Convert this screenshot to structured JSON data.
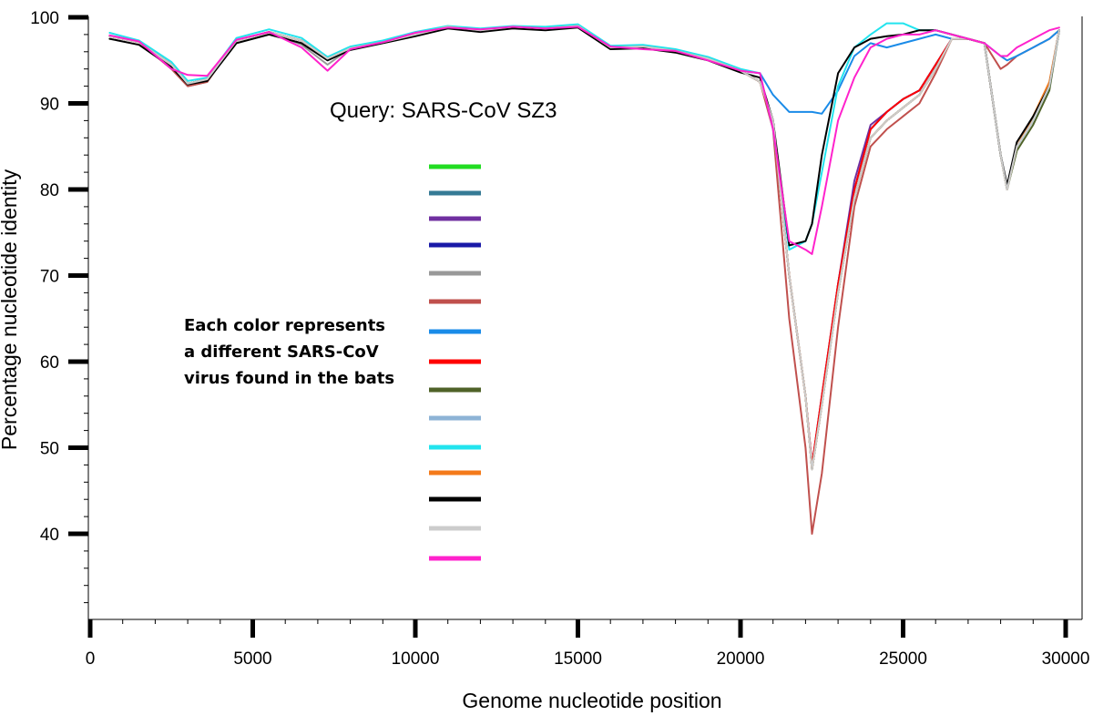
{
  "chart_data": {
    "type": "line",
    "title": "Query: SARS-CoV SZ3",
    "xlabel": "Genome nucleotide position",
    "ylabel": "Percentage nucleotide identity",
    "xlim": [
      0,
      30000
    ],
    "ylim": [
      30,
      100
    ],
    "x_ticks": [
      "0",
      "5000",
      "10000",
      "15000",
      "20000",
      "25000",
      "30000"
    ],
    "y_ticks": [
      "40",
      "50",
      "60",
      "70",
      "80",
      "90",
      "100"
    ],
    "note": [
      "Each color represents",
      "a different SARS-CoV",
      "virus found in the bats"
    ],
    "legend_placement": "center-left, unlabeled color swatches",
    "grid": false,
    "x": [
      600,
      1500,
      2500,
      3000,
      3600,
      4500,
      5500,
      6500,
      7300,
      8000,
      9000,
      10000,
      11000,
      12000,
      13000,
      14000,
      15000,
      16000,
      17000,
      18000,
      19000,
      20000,
      20600,
      21000,
      21500,
      22000,
      22200,
      22500,
      23000,
      23500,
      24000,
      24500,
      25000,
      25500,
      26000,
      26500,
      27000,
      27500,
      28000,
      28200,
      28500,
      29000,
      29500,
      29800
    ],
    "series": [
      {
        "color": "#22dd22",
        "values": [
          97.8,
          97.1,
          94.5,
          92.3,
          92.8,
          97.3,
          98.3,
          97.3,
          95.2,
          96.4,
          97.1,
          98.0,
          98.9,
          98.5,
          98.9,
          98.7,
          99.0,
          96.5,
          96.6,
          96.1,
          95.2,
          93.8,
          92.5,
          88.0,
          70.0,
          56.0,
          47.5,
          55.0,
          68.0,
          79.0,
          86.0,
          88.0,
          89.5,
          91.0,
          94.0,
          97.5,
          97.5,
          97.0,
          84.0,
          80.0,
          85.0,
          88.0,
          92.0,
          98.5
        ]
      },
      {
        "color": "#357a95",
        "values": [
          97.8,
          97.1,
          94.5,
          92.3,
          92.8,
          97.3,
          98.3,
          97.3,
          95.2,
          96.4,
          97.1,
          98.0,
          98.9,
          98.5,
          98.9,
          98.7,
          99.0,
          96.5,
          96.6,
          96.1,
          95.2,
          93.8,
          92.5,
          88.0,
          70.0,
          56.0,
          47.5,
          55.0,
          68.0,
          79.0,
          86.0,
          88.0,
          89.5,
          91.0,
          94.0,
          97.5,
          97.5,
          97.0,
          84.0,
          80.0,
          85.0,
          88.0,
          92.0,
          98.5
        ]
      },
      {
        "color": "#7030a0",
        "values": [
          97.8,
          97.1,
          94.5,
          92.3,
          92.8,
          97.3,
          98.3,
          97.3,
          95.2,
          96.4,
          97.1,
          98.0,
          98.9,
          98.5,
          98.9,
          98.7,
          99.0,
          96.5,
          96.6,
          96.1,
          95.2,
          93.8,
          92.5,
          88.0,
          70.0,
          56.0,
          47.5,
          55.0,
          69.0,
          81.0,
          87.5,
          89.0,
          90.5,
          91.5,
          94.5,
          97.5,
          97.5,
          97.0,
          84.0,
          80.0,
          85.0,
          88.0,
          92.0,
          98.5
        ]
      },
      {
        "color": "#1a1aa8",
        "values": [
          97.8,
          97.1,
          94.5,
          92.3,
          92.8,
          97.3,
          98.3,
          97.3,
          95.2,
          96.4,
          97.1,
          98.0,
          98.9,
          98.5,
          98.9,
          98.7,
          99.0,
          96.5,
          96.6,
          96.1,
          95.2,
          93.8,
          92.5,
          88.0,
          70.0,
          56.0,
          48.0,
          56.0,
          69.0,
          80.0,
          87.0,
          89.0,
          90.5,
          91.5,
          94.5,
          97.5,
          97.5,
          97.0,
          84.0,
          80.0,
          85.0,
          88.0,
          92.0,
          98.5
        ]
      },
      {
        "color": "#999999",
        "values": [
          97.8,
          97.1,
          94.0,
          92.0,
          92.5,
          97.3,
          98.3,
          96.8,
          94.5,
          96.4,
          97.1,
          98.0,
          98.9,
          98.5,
          98.9,
          98.7,
          99.0,
          96.5,
          96.6,
          96.1,
          95.2,
          93.8,
          92.5,
          88.0,
          70.0,
          56.0,
          47.5,
          55.0,
          68.0,
          79.0,
          86.0,
          88.0,
          89.5,
          91.0,
          94.0,
          97.5,
          97.5,
          97.0,
          84.0,
          80.0,
          85.0,
          88.0,
          92.0,
          98.5
        ]
      },
      {
        "color": "#c0504d",
        "values": [
          97.8,
          97.1,
          94.0,
          92.0,
          92.5,
          97.3,
          98.3,
          97.3,
          95.2,
          96.4,
          97.1,
          98.0,
          98.9,
          98.5,
          98.9,
          98.7,
          99.0,
          96.5,
          96.6,
          96.1,
          95.2,
          93.8,
          92.5,
          87.0,
          65.0,
          50.0,
          40.0,
          47.0,
          64.0,
          78.0,
          85.0,
          87.0,
          88.5,
          90.0,
          93.5,
          97.5,
          97.5,
          97.0,
          94.0,
          94.5,
          95.5,
          96.5,
          97.5,
          98.5
        ]
      },
      {
        "color": "#1a8be8",
        "values": [
          97.8,
          97.1,
          94.5,
          92.3,
          92.8,
          97.3,
          98.3,
          97.3,
          95.2,
          96.4,
          97.1,
          98.0,
          98.9,
          98.5,
          98.9,
          98.7,
          99.0,
          96.5,
          96.6,
          96.1,
          95.2,
          93.8,
          93.5,
          91.0,
          89.0,
          89.0,
          89.0,
          88.8,
          91.5,
          95.5,
          97.0,
          96.5,
          97.0,
          97.5,
          98.0,
          97.5,
          97.5,
          97.0,
          95.5,
          95.0,
          95.5,
          96.5,
          97.5,
          98.5
        ]
      },
      {
        "color": "#ff0000",
        "values": [
          97.8,
          97.1,
          94.5,
          92.3,
          92.8,
          97.3,
          98.3,
          97.3,
          95.2,
          96.4,
          97.1,
          98.0,
          98.9,
          98.5,
          98.9,
          98.7,
          99.0,
          96.5,
          96.6,
          96.1,
          95.2,
          93.8,
          92.5,
          88.0,
          70.0,
          56.0,
          48.0,
          56.0,
          69.0,
          80.0,
          87.0,
          89.0,
          90.5,
          91.5,
          94.5,
          97.5,
          97.5,
          97.0,
          84.0,
          80.0,
          85.0,
          88.0,
          92.0,
          98.5
        ]
      },
      {
        "color": "#4f6228",
        "values": [
          97.8,
          97.1,
          94.5,
          92.3,
          92.8,
          97.3,
          98.3,
          97.3,
          95.2,
          96.4,
          97.1,
          98.0,
          98.9,
          98.5,
          98.9,
          98.7,
          99.0,
          96.5,
          96.6,
          96.1,
          95.2,
          93.8,
          92.5,
          88.0,
          70.0,
          56.0,
          47.5,
          55.0,
          68.0,
          79.0,
          86.0,
          88.0,
          89.5,
          91.0,
          94.0,
          97.5,
          97.5,
          97.0,
          84.0,
          80.0,
          84.5,
          87.5,
          91.5,
          98.5
        ]
      },
      {
        "color": "#8db3d6",
        "values": [
          97.8,
          97.1,
          94.5,
          92.3,
          92.8,
          97.3,
          98.3,
          97.3,
          95.2,
          96.4,
          97.1,
          98.0,
          98.9,
          98.5,
          98.9,
          98.7,
          99.0,
          96.5,
          96.6,
          96.1,
          95.2,
          93.8,
          92.5,
          88.0,
          70.0,
          56.0,
          47.5,
          55.0,
          68.0,
          79.0,
          86.0,
          88.0,
          89.5,
          91.0,
          94.0,
          97.5,
          97.5,
          97.0,
          84.0,
          80.0,
          85.0,
          88.0,
          92.0,
          98.5
        ]
      },
      {
        "color": "#22e4ee",
        "values": [
          98.2,
          97.3,
          94.8,
          92.6,
          93.0,
          97.6,
          98.6,
          97.6,
          95.4,
          96.6,
          97.3,
          98.3,
          99.0,
          98.7,
          99.0,
          98.9,
          99.2,
          96.7,
          96.8,
          96.3,
          95.4,
          94.0,
          93.5,
          87.0,
          73.0,
          74.0,
          76.0,
          82.0,
          92.0,
          96.5,
          98.0,
          99.3,
          99.3,
          98.5,
          98.5,
          98.0,
          97.5,
          97.0,
          84.0,
          80.0,
          85.0,
          88.0,
          92.0,
          98.5
        ]
      },
      {
        "color": "#f47a1a",
        "values": [
          97.8,
          97.1,
          94.5,
          92.3,
          92.8,
          97.3,
          98.3,
          97.3,
          95.2,
          96.4,
          97.1,
          98.0,
          98.9,
          98.5,
          98.9,
          98.7,
          99.0,
          96.5,
          96.6,
          96.1,
          95.2,
          93.8,
          92.5,
          88.0,
          70.0,
          56.0,
          47.5,
          55.0,
          68.0,
          79.0,
          86.0,
          88.0,
          89.5,
          91.0,
          94.0,
          97.5,
          97.5,
          97.0,
          84.0,
          80.0,
          85.0,
          88.5,
          92.5,
          98.5
        ]
      },
      {
        "color": "#000000",
        "values": [
          97.5,
          96.8,
          94.2,
          92.2,
          92.6,
          97.0,
          98.0,
          97.0,
          95.0,
          96.2,
          97.0,
          97.8,
          98.7,
          98.3,
          98.7,
          98.5,
          98.8,
          96.3,
          96.4,
          95.9,
          95.0,
          93.6,
          93.0,
          88.0,
          73.5,
          74.0,
          76.0,
          84.0,
          93.5,
          96.5,
          97.5,
          97.8,
          98.0,
          98.5,
          98.5,
          98.0,
          97.5,
          97.0,
          84.0,
          80.5,
          85.5,
          88.5,
          92.0,
          98.5
        ]
      },
      {
        "color": "#cccccc",
        "values": [
          97.8,
          97.1,
          94.5,
          92.3,
          92.8,
          97.3,
          98.3,
          97.3,
          95.2,
          96.4,
          97.1,
          98.0,
          98.9,
          98.5,
          98.9,
          98.7,
          99.0,
          96.5,
          96.6,
          96.1,
          95.2,
          93.8,
          92.5,
          88.0,
          70.0,
          56.0,
          47.5,
          55.0,
          68.0,
          79.0,
          86.0,
          88.0,
          89.5,
          91.0,
          94.0,
          97.5,
          97.5,
          97.0,
          84.0,
          80.0,
          85.0,
          88.0,
          92.0,
          98.5
        ]
      },
      {
        "color": "#ff22cc",
        "values": [
          97.9,
          97.2,
          94.0,
          93.3,
          93.2,
          97.4,
          98.3,
          96.5,
          93.8,
          96.3,
          97.1,
          98.2,
          98.8,
          98.6,
          98.9,
          98.7,
          98.9,
          96.6,
          96.3,
          96.1,
          95.0,
          93.8,
          93.5,
          87.0,
          74.0,
          73.0,
          72.5,
          78.0,
          88.0,
          93.0,
          96.5,
          97.5,
          98.0,
          98.0,
          98.5,
          98.0,
          97.5,
          97.0,
          95.5,
          95.5,
          96.5,
          97.5,
          98.5,
          98.8
        ]
      }
    ]
  }
}
